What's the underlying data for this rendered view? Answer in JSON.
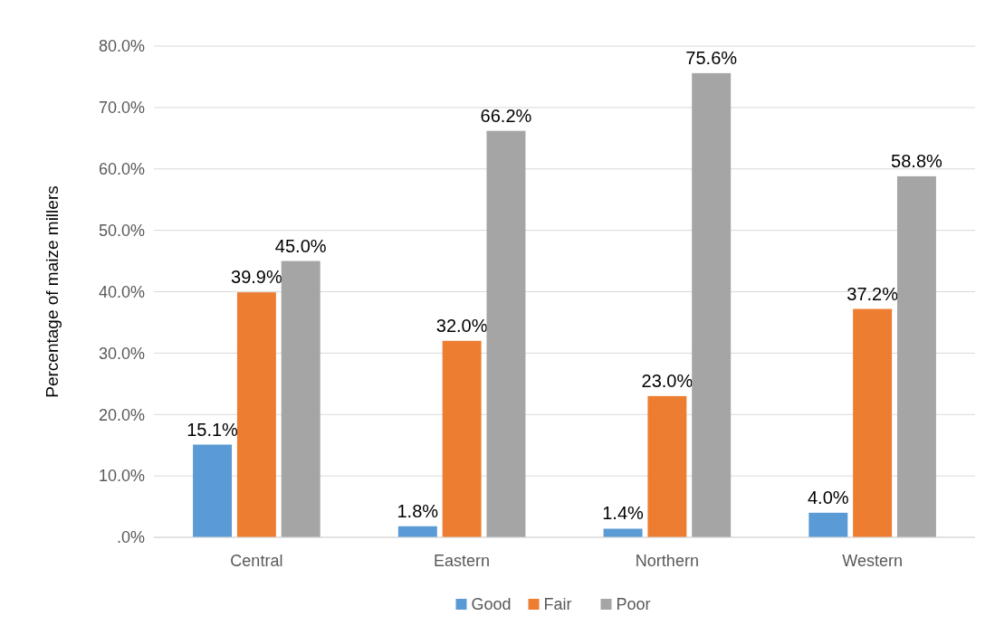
{
  "chart_data": {
    "type": "bar",
    "ylabel": "Percentage of maize millers",
    "categories": [
      "Central",
      "Eastern",
      "Northern",
      "Western"
    ],
    "series": [
      {
        "name": "Good",
        "color": "#5b9bd5",
        "values": [
          15.1,
          1.8,
          1.4,
          4.0
        ],
        "value_labels": [
          "15.1%",
          "1.8%",
          "1.4%",
          "4.0%"
        ]
      },
      {
        "name": "Fair",
        "color": "#ed7d31",
        "values": [
          39.9,
          32.0,
          23.0,
          37.2
        ],
        "value_labels": [
          "39.9%",
          "32.0%",
          "23.0%",
          "37.2%"
        ]
      },
      {
        "name": "Poor",
        "color": "#a5a5a5",
        "values": [
          45.0,
          66.2,
          75.6,
          58.8
        ],
        "value_labels": [
          "45.0%",
          "66.2%",
          "75.6%",
          "58.8%"
        ]
      }
    ],
    "ylim": [
      0,
      80
    ],
    "yticks": [
      {
        "value": 0,
        "label": ".0%"
      },
      {
        "value": 10,
        "label": "10.0%"
      },
      {
        "value": 20,
        "label": "20.0%"
      },
      {
        "value": 30,
        "label": "30.0%"
      },
      {
        "value": 40,
        "label": "40.0%"
      },
      {
        "value": 50,
        "label": "50.0%"
      },
      {
        "value": 60,
        "label": "60.0%"
      },
      {
        "value": 70,
        "label": "70.0%"
      },
      {
        "value": 80,
        "label": "80.0%"
      }
    ],
    "grid": "y",
    "legend": "bottom"
  }
}
